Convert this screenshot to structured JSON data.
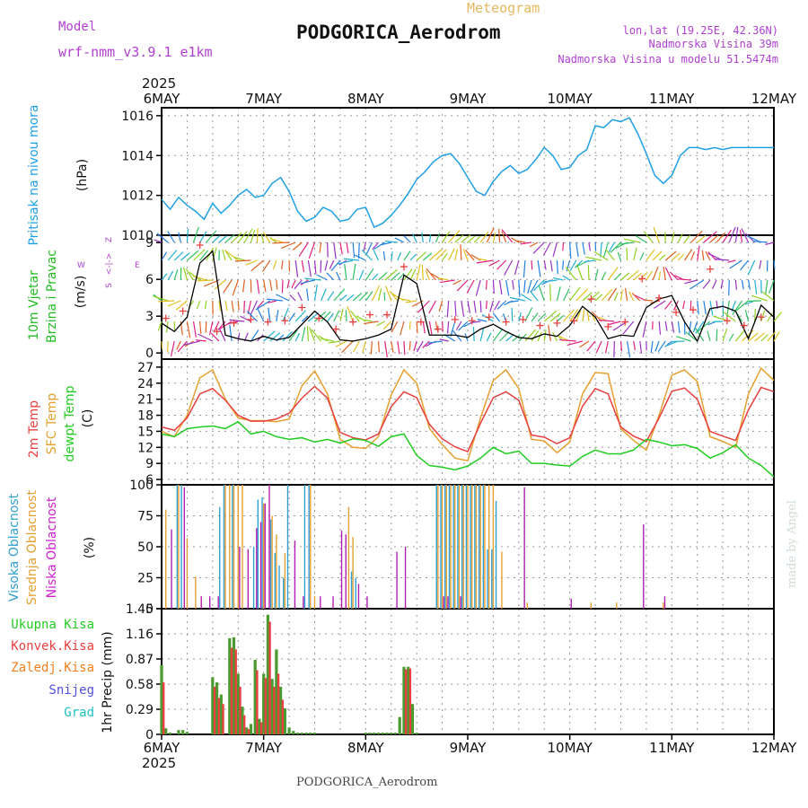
{
  "header": {
    "model_label": "Model",
    "model_name": "wrf-nmm_v3.9.1 e1km",
    "product": "Meteogram",
    "station": "PODGORICA_Aerodrom",
    "lonlat": "lon,lat (19.25E, 42.36N)",
    "elev": "Nadmorska Visina 39m",
    "elev_model": "Nadmorska Visina u modelu 51.5474m",
    "footer_station": "PODGORICA_Aerodrom",
    "credit": "made by Angel",
    "year": "2025"
  },
  "colors": {
    "pressure": "#1fa0e6",
    "t2m": "#e84040",
    "tsfc": "#e6a030",
    "dewpt": "#22cc22",
    "rain_total": "#4a9a30",
    "rain_conv": "#e84040",
    "rain_frozen": "#f08020",
    "snow": "#5050e0",
    "graupel": "#20c0c0",
    "cloud_high": "#30a0d0",
    "cloud_mid": "#e6a030",
    "cloud_low": "#b020b0",
    "wind_speed": "#000000",
    "gust": "#e84040",
    "compass": "#b040d0"
  },
  "chart_data": [
    {
      "id": "pressure",
      "type": "line",
      "ylabel": "Pritisak na nivou mora",
      "unit": "(hPa)",
      "ylim": [
        1010,
        1016.4
      ],
      "yticks": [
        "1010",
        "1012",
        "1014",
        "1016"
      ],
      "xticks": [
        "6MAY",
        "7MAY",
        "8MAY",
        "9MAY",
        "10MAY",
        "11MAY",
        "12MAY"
      ],
      "grid": true,
      "series": [
        {
          "x": [
            0,
            2,
            4,
            6,
            8,
            10,
            12,
            14,
            16,
            18,
            20,
            22,
            24,
            26,
            28,
            30,
            32,
            34,
            36,
            38,
            40,
            42,
            44,
            46,
            48,
            50,
            52,
            54,
            56,
            58,
            60,
            62,
            64,
            66,
            68,
            70,
            72,
            74,
            76,
            78,
            80,
            82,
            84,
            86,
            88,
            90,
            92,
            94,
            96,
            98,
            100,
            102,
            104,
            106,
            108,
            110,
            112,
            114,
            116,
            118,
            120,
            122,
            124,
            126,
            128,
            130,
            132,
            134,
            136,
            138,
            140,
            142,
            144
          ],
          "values": [
            1011.8,
            1011.3,
            1011.9,
            1011.5,
            1011.2,
            1010.8,
            1011.6,
            1011.1,
            1011.5,
            1012.0,
            1012.3,
            1011.9,
            1012.0,
            1012.6,
            1012.9,
            1012.2,
            1011.2,
            1010.7,
            1010.9,
            1011.4,
            1011.2,
            1010.7,
            1010.8,
            1011.3,
            1011.4,
            1010.4,
            1010.6,
            1011.0,
            1011.5,
            1012.1,
            1012.8,
            1013.2,
            1013.7,
            1014.0,
            1014.1,
            1013.6,
            1012.9,
            1012.2,
            1012.0,
            1012.7,
            1013.2,
            1013.5,
            1013.1,
            1013.3,
            1013.8,
            1014.4,
            1014.0,
            1013.3,
            1013.4,
            1014.0,
            1014.3,
            1015.5,
            1015.4,
            1015.8,
            1015.7,
            1015.9,
            1015.1,
            1014.1,
            1013.0,
            1012.6,
            1013.0,
            1014.0,
            1014.4,
            1014.4,
            1014.3,
            1014.4,
            1014.3,
            1014.4,
            1014.4,
            1014.4,
            1014.4,
            1014.4,
            1014.4
          ]
        }
      ]
    },
    {
      "id": "wind",
      "type": "line",
      "ylabel": "10m Vjetar",
      "ylabel2": "Brzina i Pravac",
      "unit": "(m/s)",
      "compass": [
        "Z",
        "S",
        "E",
        "W",
        "<-|->"
      ],
      "ylim": [
        -0.5,
        9.6
      ],
      "yticks": [
        "0",
        "3",
        "6",
        "9"
      ],
      "grid": true,
      "series": [
        {
          "name": "speed",
          "x": [
            0,
            3,
            6,
            9,
            12,
            15,
            18,
            21,
            24,
            27,
            30,
            33,
            36,
            39,
            42,
            45,
            48,
            51,
            54,
            57,
            60,
            63,
            66,
            69,
            72,
            75,
            78,
            81,
            84,
            87,
            90,
            93,
            96,
            99,
            102,
            105,
            108,
            111,
            114,
            117,
            120,
            123,
            126,
            129,
            132,
            135,
            138,
            141,
            144
          ],
          "values": [
            2.5,
            1.8,
            3.0,
            7.5,
            8.5,
            1.5,
            1.2,
            1.0,
            1.4,
            1.1,
            1.3,
            2.4,
            3.5,
            2.6,
            1.1,
            1.0,
            1.2,
            1.5,
            2.0,
            6.5,
            5.8,
            1.5,
            1.5,
            1.5,
            1.3,
            2.0,
            2.4,
            1.8,
            1.3,
            1.2,
            1.6,
            1.4,
            2.3,
            3.9,
            3.0,
            1.2,
            1.5,
            1.4,
            3.8,
            4.5,
            4.8,
            2.6,
            1.0,
            3.7,
            3.9,
            3.5,
            1.2,
            4.0,
            3.0
          ]
        },
        {
          "name": "gust",
          "x": [
            1,
            5,
            9,
            13,
            17,
            21,
            25,
            29,
            33,
            37,
            41,
            45,
            49,
            53,
            57,
            61,
            65,
            69,
            73,
            77,
            81,
            85,
            89,
            93,
            97,
            101,
            105,
            109,
            113,
            117,
            121,
            125,
            129,
            133,
            137,
            141
          ],
          "values": [
            2.9,
            3.5,
            9.0,
            1.8,
            2.5,
            2.8,
            2.6,
            2.7,
            3.8,
            2.9,
            2.0,
            2.6,
            3.2,
            3.2,
            7.2,
            2.6,
            2.0,
            2.8,
            2.7,
            3.0,
            2.6,
            2.8,
            2.3,
            2.5,
            2.7,
            4.5,
            2.2,
            2.6,
            6.2,
            4.6,
            3.4,
            3.6,
            7.0,
            2.7,
            2.3,
            3.0
          ]
        }
      ]
    },
    {
      "id": "temperature",
      "type": "line",
      "labels": [
        "2m Temp",
        "SFC Temp",
        "dewpt Temp"
      ],
      "unit": "(C)",
      "ylim": [
        5,
        28.5
      ],
      "yticks": [
        "6",
        "9",
        "12",
        "15",
        "18",
        "21",
        "24",
        "27"
      ],
      "grid": true,
      "series": [
        {
          "name": "2m Temp",
          "x": [
            0,
            3,
            6,
            9,
            12,
            15,
            18,
            21,
            24,
            27,
            30,
            33,
            36,
            39,
            42,
            45,
            48,
            51,
            54,
            57,
            60,
            63,
            66,
            69,
            72,
            75,
            78,
            81,
            84,
            87,
            90,
            93,
            96,
            99,
            102,
            105,
            108,
            111,
            114,
            117,
            120,
            123,
            126,
            129,
            132,
            135,
            138,
            141,
            144
          ],
          "values": [
            15.8,
            15.2,
            17.5,
            22.0,
            23.0,
            20.8,
            18.0,
            16.9,
            16.9,
            17.3,
            18.4,
            21.2,
            23.4,
            21.2,
            14.8,
            13.8,
            13.4,
            14.5,
            19.6,
            22.4,
            21.3,
            16.3,
            13.6,
            12.1,
            11.2,
            16.5,
            21.3,
            22.4,
            20.8,
            14.3,
            13.9,
            12.7,
            13.8,
            19.7,
            23.0,
            22.0,
            15.8,
            14.1,
            13.1,
            17.5,
            22.5,
            23.1,
            21.0,
            15.0,
            14.1,
            13.3,
            19.0,
            23.2,
            22.4
          ]
        },
        {
          "name": "SFC Temp",
          "x": [
            0,
            3,
            6,
            9,
            12,
            15,
            18,
            21,
            24,
            27,
            30,
            33,
            36,
            39,
            42,
            45,
            48,
            51,
            54,
            57,
            60,
            63,
            66,
            69,
            72,
            75,
            78,
            81,
            84,
            87,
            90,
            93,
            96,
            99,
            102,
            105,
            108,
            111,
            114,
            117,
            120,
            123,
            126,
            129,
            132,
            135,
            138,
            141,
            144
          ],
          "values": [
            15.0,
            14.0,
            18.0,
            25.0,
            26.5,
            21.0,
            17.5,
            17.0,
            17.0,
            16.8,
            17.3,
            23.5,
            26.3,
            22.0,
            13.5,
            12.0,
            11.8,
            14.0,
            21.8,
            26.5,
            24.0,
            15.5,
            12.5,
            10.0,
            9.5,
            17.5,
            24.5,
            26.5,
            23.0,
            13.5,
            13.2,
            11.0,
            13.0,
            22.0,
            26.0,
            25.8,
            15.5,
            13.3,
            11.5,
            18.0,
            25.5,
            26.5,
            24.3,
            14.0,
            13.1,
            12.0,
            22.0,
            26.8,
            24.5
          ]
        },
        {
          "name": "dewpt Temp",
          "x": [
            0,
            3,
            6,
            9,
            12,
            15,
            18,
            21,
            24,
            27,
            30,
            33,
            36,
            39,
            42,
            45,
            48,
            51,
            54,
            57,
            60,
            63,
            66,
            69,
            72,
            75,
            78,
            81,
            84,
            87,
            90,
            93,
            96,
            99,
            102,
            105,
            108,
            111,
            114,
            117,
            120,
            123,
            126,
            129,
            132,
            135,
            138,
            141,
            144
          ],
          "values": [
            14.5,
            14.0,
            15.5,
            15.8,
            16.0,
            15.5,
            16.8,
            14.5,
            15.0,
            14.0,
            13.5,
            13.8,
            13.0,
            13.5,
            12.8,
            13.6,
            13.3,
            12.2,
            14.0,
            14.5,
            10.5,
            8.6,
            8.3,
            7.8,
            8.5,
            10.0,
            12.0,
            10.8,
            11.3,
            9.0,
            9.0,
            8.7,
            8.5,
            10.3,
            11.5,
            10.8,
            10.8,
            11.5,
            13.5,
            13.0,
            12.3,
            12.5,
            11.8,
            10.0,
            11.0,
            12.5,
            10.0,
            8.6,
            6.5
          ]
        }
      ]
    },
    {
      "id": "clouds",
      "type": "bar",
      "labels": [
        "Visoka Oblacnost",
        "Srednja Oblacnost",
        "Niska Oblacnost"
      ],
      "unit": "(%)",
      "ylim": [
        0,
        100
      ],
      "yticks": [
        "0",
        "25",
        "50",
        "75",
        "100"
      ],
      "grid": true,
      "series": [
        {
          "name": "Visoka Oblacnost",
          "x": [
            4,
            5,
            14,
            15,
            17,
            22,
            23,
            24,
            26,
            27,
            28,
            29,
            30,
            34,
            35,
            45,
            46,
            65,
            66,
            67,
            68,
            69,
            70,
            71,
            72,
            73,
            74,
            75,
            76,
            77,
            78,
            79
          ],
          "values": [
            100,
            100,
            82,
            100,
            100,
            50,
            88,
            90,
            72,
            45,
            35,
            25,
            100,
            100,
            100,
            30,
            25,
            100,
            100,
            100,
            100,
            100,
            100,
            100,
            100,
            100,
            100,
            100,
            100,
            48,
            48,
            87
          ]
        },
        {
          "name": "Srednja Oblacnost",
          "x": [
            1,
            4,
            6,
            8,
            15,
            16,
            17,
            18,
            19,
            24,
            26,
            27,
            29,
            35,
            36,
            44,
            45,
            65,
            66,
            67,
            68,
            69,
            70,
            71,
            72,
            73,
            74,
            75,
            76,
            77,
            78,
            80,
            86,
            101,
            107,
            118
          ],
          "values": [
            80,
            100,
            57,
            26,
            100,
            100,
            100,
            100,
            100,
            85,
            75,
            60,
            45,
            100,
            10,
            82,
            58,
            100,
            100,
            100,
            100,
            100,
            100,
            100,
            100,
            100,
            100,
            100,
            100,
            100,
            100,
            46,
            5,
            5,
            5,
            5
          ]
        },
        {
          "name": "Niska Oblacnost",
          "x": [
            2,
            5,
            9,
            11,
            13,
            18,
            20,
            22,
            23,
            24,
            25,
            31,
            33,
            37,
            40,
            42,
            43,
            46,
            48,
            55,
            57,
            66,
            67,
            70,
            85,
            96,
            113,
            118
          ],
          "values": [
            64,
            98,
            10,
            10,
            10,
            50,
            48,
            65,
            70,
            85,
            100,
            55,
            10,
            10,
            10,
            63,
            60,
            20,
            10,
            46,
            50,
            10,
            10,
            10,
            98,
            8,
            68,
            10
          ]
        }
      ]
    },
    {
      "id": "precip",
      "type": "bar",
      "legend": [
        "Ukupna Kisa",
        "Konvek.Kisa",
        "Zaledj.Kisa",
        "Snijeg",
        "Grad"
      ],
      "ylabel": "1hr Precip (mm)",
      "ylim": [
        0,
        1.45
      ],
      "yticks": [
        "0",
        "0.29",
        "0.58",
        "0.87",
        "1.16",
        "1.45"
      ],
      "grid": true,
      "series": [
        {
          "name": "Ukupna Kisa",
          "x": [
            0,
            1,
            2,
            3,
            4,
            5,
            6,
            12,
            13,
            14,
            16,
            17,
            18,
            19,
            20,
            21,
            22,
            23,
            24,
            25,
            26,
            27,
            28,
            29,
            30,
            31,
            32,
            33,
            34,
            35,
            36,
            48,
            49,
            50,
            51,
            52,
            53,
            54,
            55,
            56,
            57,
            58,
            59,
            60
          ],
          "values": [
            0.8,
            0.07,
            0.02,
            0,
            0.05,
            0.05,
            0.03,
            0.66,
            0.6,
            0.46,
            1.11,
            1.12,
            0.7,
            0.32,
            0.08,
            0.12,
            0.86,
            0.18,
            0.7,
            1.38,
            0.64,
            0.98,
            0.55,
            0.3,
            0.08,
            0.04,
            0.02,
            0.02,
            0.02,
            0.02,
            0.02,
            0.02,
            0.02,
            0.02,
            0.02,
            0.02,
            0.02,
            0.02,
            0.02,
            0.2,
            0.78,
            0.78,
            0.35,
            0.02
          ]
        },
        {
          "name": "Konvek.Kisa",
          "x": [
            0,
            12,
            13,
            14,
            16,
            17,
            18,
            19,
            20,
            22,
            23,
            24,
            25,
            26,
            27,
            28,
            57,
            58
          ],
          "values": [
            0.6,
            0.55,
            0.42,
            0.35,
            1.0,
            0.98,
            0.55,
            0.22,
            0.06,
            0.74,
            0.14,
            0.65,
            1.3,
            0.55,
            0.7,
            0.4,
            0.75,
            0.76
          ]
        }
      ]
    }
  ]
}
